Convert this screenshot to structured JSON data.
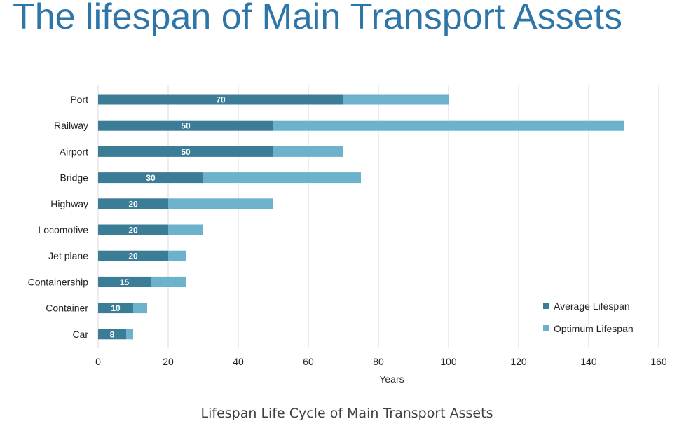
{
  "page": {
    "title": "The lifespan of Main Transport Assets",
    "caption": "Lifespan Life Cycle of Main Transport Assets"
  },
  "chart_data": {
    "type": "bar",
    "orientation": "horizontal",
    "stacked": true,
    "categories": [
      "Port",
      "Railway",
      "Airport",
      "Bridge",
      "Highway",
      "Locomotive",
      "Jet plane",
      "Containership",
      "Container",
      "Car"
    ],
    "series": [
      {
        "name": "Average Lifespan",
        "values": [
          70,
          50,
          50,
          30,
          20,
          20,
          20,
          15,
          10,
          8
        ],
        "color": "#3b7d96",
        "show_labels": true
      },
      {
        "name": "Optimum Lifespan",
        "values": [
          30,
          100,
          20,
          45,
          30,
          10,
          5,
          10,
          4,
          2
        ],
        "color": "#6cb2cc",
        "show_labels": false
      }
    ],
    "xlabel": "Years",
    "ylabel": "",
    "xlim": [
      0,
      160
    ],
    "xticks": [
      0,
      20,
      40,
      60,
      80,
      100,
      120,
      140,
      160
    ],
    "grid": "vertical",
    "legend_position": "bottom-right"
  }
}
